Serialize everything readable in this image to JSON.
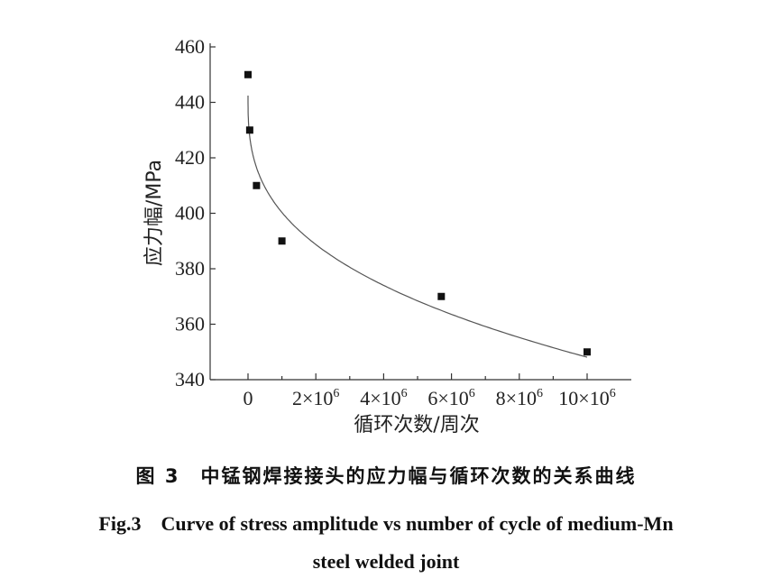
{
  "chart_data": {
    "type": "scatter",
    "ylabel": "应力幅/MPa",
    "xlabel": "循环次数/周次",
    "ylim": [
      340,
      460
    ],
    "xlim": [
      0,
      10000000
    ],
    "yticks": [
      340,
      360,
      380,
      400,
      420,
      440,
      460
    ],
    "ytick_labels": [
      "340",
      "360",
      "380",
      "400",
      "420",
      "440",
      "460"
    ],
    "xticks": [
      0,
      2000000,
      4000000,
      6000000,
      8000000,
      10000000
    ],
    "xtick_labels": [
      {
        "mant": "0",
        "exp": ""
      },
      {
        "mant": "2×10",
        "exp": "6"
      },
      {
        "mant": "4×10",
        "exp": "6"
      },
      {
        "mant": "6×10",
        "exp": "6"
      },
      {
        "mant": "8×10",
        "exp": "6"
      },
      {
        "mant": "10×10",
        "exp": "6"
      }
    ],
    "series": [
      {
        "marker": "square",
        "x": [
          0,
          50000,
          250000,
          1000000,
          5700000,
          10000000
        ],
        "y": [
          450,
          430,
          410,
          390,
          370,
          350
        ]
      }
    ],
    "fit_curve": true
  },
  "caption": {
    "cn": "图 3　中锰钢焊接接头的应力幅与循环次数的关系曲线",
    "en_line1": "Fig.3　Curve of stress amplitude vs number of cycle of medium-Mn",
    "en_line2": "steel welded joint"
  }
}
